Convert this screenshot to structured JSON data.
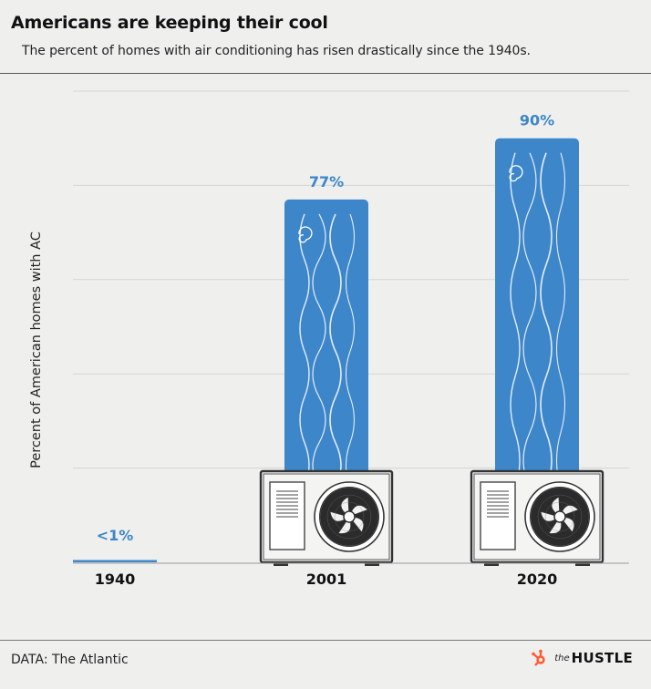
{
  "header": {
    "title": "Americans are keeping their cool",
    "subtitle": "The percent of homes with air conditioning has risen drastically since the 1940s."
  },
  "footer": {
    "source": "DATA: The Atlantic",
    "logo_prefix": "the",
    "logo_name": "HUSTLE",
    "logo_icon": "sprocket-icon"
  },
  "colors": {
    "bar": "#3d86c9",
    "label": "#3d86c9",
    "background": "#eff0ee",
    "grid": "#d3d6d3",
    "logo_accent": "#ff5c35"
  },
  "chart_data": {
    "type": "bar",
    "categories": [
      "1940",
      "2001",
      "2020"
    ],
    "values": [
      0.5,
      77,
      90
    ],
    "data_labels": [
      "<1%",
      "77%",
      "90%"
    ],
    "ylabel": "Percent of American homes with AC",
    "ylim": [
      0,
      100
    ],
    "grid": true,
    "units": "%"
  }
}
